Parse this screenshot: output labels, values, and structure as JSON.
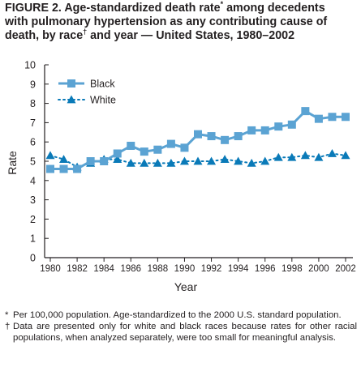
{
  "figure": {
    "title_line1": "FIGURE 2. Age-standardized death rate",
    "title_mark1": "*",
    "title_line1b": " among decedents",
    "title_line2": "with pulmonary hypertension as any contributing cause of",
    "title_line3a": "death, by race",
    "title_mark2": "†",
    "title_line3b": " and year — United States, 1980–2002"
  },
  "footnotes": [
    {
      "mark": "*",
      "text": "Per 100,000 population. Age-standardized to the 2000 U.S. standard population."
    },
    {
      "mark": "†",
      "text": "Data are presented only for white and black races because rates for other racial populations, when analyzed separately, were too small for meaningful analysis."
    }
  ],
  "chart_data": {
    "type": "line",
    "xlabel": "Year",
    "ylabel": "Rate",
    "xlim": [
      1980,
      2002
    ],
    "ylim": [
      0,
      10
    ],
    "yticks": [
      0,
      1,
      2,
      3,
      4,
      5,
      6,
      7,
      8,
      9,
      10
    ],
    "xticks": [
      1980,
      1982,
      1984,
      1986,
      1988,
      1990,
      1992,
      1994,
      1996,
      1998,
      2000,
      2002
    ],
    "legend_position": "top-left",
    "x": [
      1980,
      1981,
      1982,
      1983,
      1984,
      1985,
      1986,
      1987,
      1988,
      1989,
      1990,
      1991,
      1992,
      1993,
      1994,
      1995,
      1996,
      1997,
      1998,
      1999,
      2000,
      2001,
      2002
    ],
    "series": [
      {
        "name": "Black",
        "color": "#5ba3d3",
        "marker": "square",
        "line": "solid",
        "values": [
          4.6,
          4.6,
          4.6,
          5.0,
          5.0,
          5.4,
          5.8,
          5.5,
          5.6,
          5.9,
          5.7,
          6.4,
          6.3,
          6.1,
          6.3,
          6.6,
          6.6,
          6.8,
          6.9,
          7.6,
          7.2,
          7.3,
          7.3
        ]
      },
      {
        "name": "White",
        "color": "#0a7ab8",
        "marker": "triangle",
        "line": "dotted",
        "values": [
          5.3,
          5.1,
          4.7,
          4.9,
          5.1,
          5.1,
          4.9,
          4.9,
          4.9,
          4.9,
          5.0,
          5.0,
          5.0,
          5.1,
          5.0,
          4.9,
          5.0,
          5.2,
          5.2,
          5.3,
          5.2,
          5.4,
          5.3
        ]
      }
    ]
  }
}
